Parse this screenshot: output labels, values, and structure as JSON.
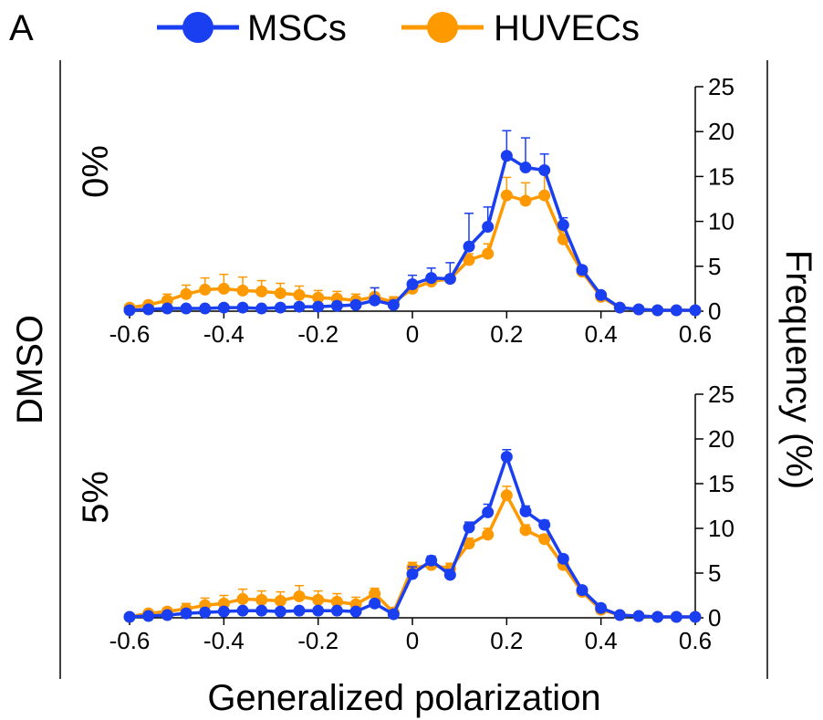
{
  "panel_label": "A",
  "left_label": "DMSO",
  "right_label": "Frequency (%)",
  "xlabel": "Generalized polarization",
  "legend": [
    {
      "name": "MSCs",
      "color": "#1a3ff0"
    },
    {
      "name": "HUVECs",
      "color": "#ff9900"
    }
  ],
  "chart_data": [
    {
      "type": "line",
      "row_label": "0%",
      "xlim": [
        -0.6,
        0.6
      ],
      "ylim": [
        0,
        25
      ],
      "x_ticks": [
        "-0.6",
        "-0.4",
        "-0.2",
        "0",
        "0.2",
        "0.4",
        "0.6"
      ],
      "y_ticks": [
        "0",
        "5",
        "10",
        "15",
        "20",
        "25"
      ],
      "x": [
        -0.6,
        -0.56,
        -0.52,
        -0.48,
        -0.44,
        -0.4,
        -0.36,
        -0.32,
        -0.28,
        -0.24,
        -0.2,
        -0.16,
        -0.12,
        -0.08,
        -0.04,
        0,
        0.04,
        0.08,
        0.12,
        0.16,
        0.2,
        0.24,
        0.28,
        0.32,
        0.36,
        0.4,
        0.44,
        0.48,
        0.52,
        0.56,
        0.6
      ],
      "series": [
        {
          "name": "MSCs",
          "color": "#1a3ff0",
          "values": [
            0.1,
            0.2,
            0.3,
            0.3,
            0.3,
            0.4,
            0.4,
            0.3,
            0.4,
            0.5,
            0.5,
            0.6,
            0.7,
            1.2,
            0.7,
            3.0,
            3.7,
            3.6,
            7.2,
            9.4,
            17.3,
            16.0,
            15.7,
            9.6,
            4.6,
            1.8,
            0.4,
            0.2,
            0.1,
            0.1,
            0.1
          ],
          "errors": [
            0.1,
            0.1,
            0.1,
            0.1,
            0.1,
            0.1,
            0.1,
            0.1,
            0.1,
            0.2,
            0.2,
            0.2,
            0.3,
            1.4,
            0.3,
            1.0,
            1.1,
            1.8,
            3.7,
            2.2,
            2.8,
            3.3,
            1.8,
            0.8,
            0.4,
            0.3,
            0.1,
            0.1,
            0.1,
            0.1,
            0.1
          ]
        },
        {
          "name": "HUVECs",
          "color": "#ff9900",
          "values": [
            0.4,
            0.7,
            1.2,
            1.9,
            2.4,
            2.5,
            2.3,
            2.2,
            2.0,
            1.8,
            1.5,
            1.4,
            1.2,
            1.6,
            1.0,
            2.5,
            3.3,
            3.6,
            5.7,
            6.4,
            12.9,
            12.3,
            12.9,
            8.0,
            4.4,
            1.6,
            0.4,
            0.2,
            0.1,
            0.1,
            0.1
          ],
          "errors": [
            0.2,
            0.4,
            0.7,
            1.0,
            1.3,
            1.6,
            1.5,
            1.2,
            1.1,
            1.0,
            0.8,
            0.8,
            0.7,
            1.0,
            0.6,
            0.5,
            0.4,
            0.4,
            0.7,
            1.1,
            2.0,
            2.0,
            2.7,
            0.9,
            0.5,
            0.2,
            0.1,
            0.1,
            0.1,
            0.1,
            0.1
          ]
        }
      ]
    },
    {
      "type": "line",
      "row_label": "5%",
      "xlim": [
        -0.6,
        0.6
      ],
      "ylim": [
        0,
        25
      ],
      "x_ticks": [
        "-0.6",
        "-0.4",
        "-0.2",
        "0",
        "0.2",
        "0.4",
        "0.6"
      ],
      "y_ticks": [
        "0",
        "5",
        "10",
        "15",
        "20",
        "25"
      ],
      "x": [
        -0.6,
        -0.56,
        -0.52,
        -0.48,
        -0.44,
        -0.4,
        -0.36,
        -0.32,
        -0.28,
        -0.24,
        -0.2,
        -0.16,
        -0.12,
        -0.08,
        -0.04,
        0,
        0.04,
        0.08,
        0.12,
        0.16,
        0.2,
        0.24,
        0.28,
        0.32,
        0.36,
        0.4,
        0.44,
        0.48,
        0.52,
        0.56,
        0.6
      ],
      "series": [
        {
          "name": "MSCs",
          "color": "#1a3ff0",
          "values": [
            0.1,
            0.2,
            0.3,
            0.5,
            0.6,
            0.7,
            0.8,
            0.8,
            0.7,
            0.8,
            0.8,
            0.8,
            0.7,
            1.6,
            0.4,
            4.9,
            6.4,
            4.8,
            10.1,
            11.8,
            18.0,
            11.9,
            10.4,
            6.6,
            3.1,
            1.1,
            0.3,
            0.2,
            0.1,
            0.1,
            0.1
          ],
          "errors": [
            0.1,
            0.1,
            0.2,
            0.2,
            0.2,
            0.3,
            0.3,
            0.3,
            0.3,
            0.3,
            0.3,
            0.3,
            0.3,
            0.4,
            0.2,
            0.8,
            0.5,
            0.6,
            0.6,
            0.9,
            0.8,
            0.6,
            0.5,
            0.4,
            0.3,
            0.2,
            0.1,
            0.1,
            0.1,
            0.1,
            0.1
          ]
        },
        {
          "name": "HUVECs",
          "color": "#ff9900",
          "values": [
            0.1,
            0.5,
            0.7,
            1.0,
            1.4,
            1.6,
            2.1,
            2.0,
            1.9,
            2.4,
            2.0,
            1.8,
            1.5,
            2.7,
            0.6,
            5.6,
            5.9,
            5.5,
            8.3,
            9.3,
            13.7,
            9.8,
            8.8,
            5.9,
            2.9,
            0.9,
            0.3,
            0.2,
            0.1,
            0.1,
            0.1
          ],
          "errors": [
            0.1,
            0.3,
            0.4,
            0.6,
            0.8,
            0.9,
            1.1,
            1.0,
            1.0,
            1.2,
            1.0,
            0.9,
            0.8,
            0.6,
            0.3,
            0.6,
            0.8,
            0.6,
            0.6,
            0.7,
            1.0,
            0.6,
            0.5,
            0.4,
            0.3,
            0.2,
            0.1,
            0.1,
            0.1,
            0.1,
            0.1
          ]
        }
      ]
    }
  ]
}
